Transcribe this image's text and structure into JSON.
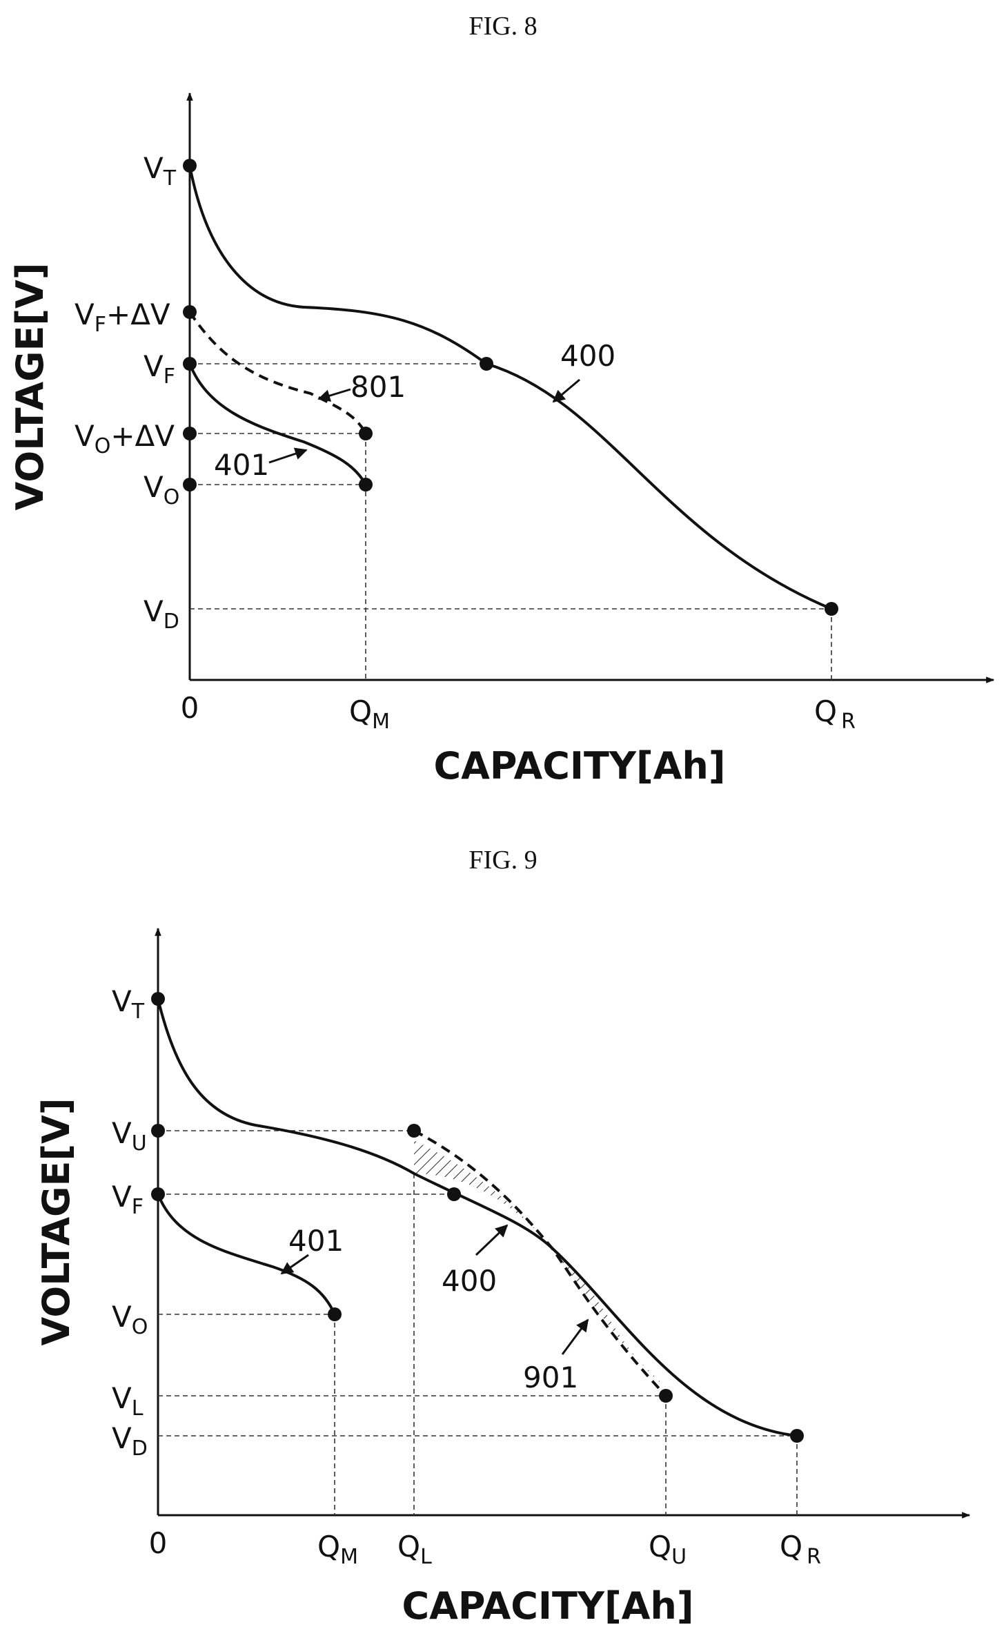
{
  "fig8": {
    "title": "FIG. 8",
    "y_axis_title": "VOLTAGE[V]",
    "x_axis_title": "CAPACITY[Ah]",
    "y_ticks": {
      "vt": {
        "main": "V",
        "sub": "T",
        "rest": ""
      },
      "vf_dv": {
        "main": "V",
        "sub": "F",
        "rest": "+ΔV"
      },
      "vf": {
        "main": "V",
        "sub": "F",
        "rest": ""
      },
      "vo_dv": {
        "main": "V",
        "sub": "O",
        "rest": "+ΔV"
      },
      "vo": {
        "main": "V",
        "sub": "O",
        "rest": ""
      },
      "vd": {
        "main": "V",
        "sub": "D",
        "rest": ""
      }
    },
    "x_ticks": {
      "zero": {
        "main": "0",
        "sub": ""
      },
      "qm": {
        "main": "Q",
        "sub": "M"
      },
      "qr": {
        "main": "Q",
        "sub": "R"
      }
    },
    "callouts": {
      "c400": "400",
      "c801": "801",
      "c401": "401"
    }
  },
  "fig9": {
    "title": "FIG. 9",
    "y_axis_title": "VOLTAGE[V]",
    "x_axis_title": "CAPACITY[Ah]",
    "y_ticks": {
      "vt": {
        "main": "V",
        "sub": "T"
      },
      "vu": {
        "main": "V",
        "sub": "U"
      },
      "vf": {
        "main": "V",
        "sub": "F"
      },
      "vo": {
        "main": "V",
        "sub": "O"
      },
      "vl": {
        "main": "V",
        "sub": "L"
      },
      "vd": {
        "main": "V",
        "sub": "D"
      }
    },
    "x_ticks": {
      "zero": {
        "main": "0",
        "sub": ""
      },
      "qm": {
        "main": "Q",
        "sub": "M"
      },
      "ql": {
        "main": "Q",
        "sub": "L"
      },
      "qu": {
        "main": "Q",
        "sub": "U"
      },
      "qr": {
        "main": "Q",
        "sub": "R"
      }
    },
    "callouts": {
      "c401": "401",
      "c400": "400",
      "c901": "901"
    }
  },
  "colors": {
    "ink": "#111111",
    "background": "#ffffff"
  }
}
